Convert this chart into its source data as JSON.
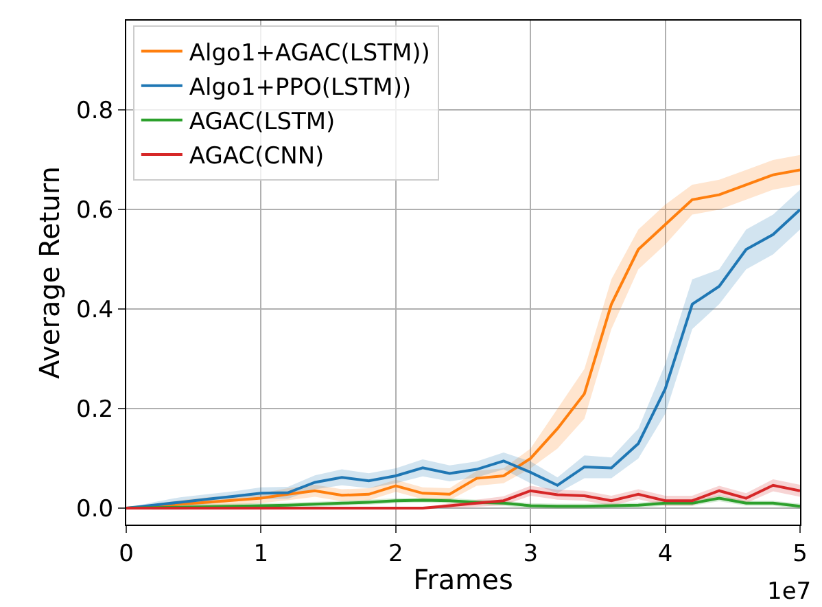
{
  "chart_data": {
    "type": "line",
    "xlabel": "Frames",
    "ylabel": "Average Return",
    "annotations": [
      "1e7"
    ],
    "x": [
      0,
      0.2,
      0.4,
      0.6,
      0.8,
      1,
      1.2,
      1.4,
      1.6,
      1.8,
      2,
      2.2,
      2.4,
      2.6,
      2.8,
      3,
      3.2,
      3.4,
      3.6,
      3.8,
      4,
      4.2,
      4.4,
      4.6,
      4.8,
      5
    ],
    "series": [
      {
        "name": "Algo1+AGAC(LSTM))",
        "color": "#ff7f0e",
        "values": [
          0,
          0.004,
          0.008,
          0.012,
          0.016,
          0.02,
          0.028,
          0.035,
          0.026,
          0.028,
          0.045,
          0.03,
          0.028,
          0.06,
          0.065,
          0.1,
          0.16,
          0.23,
          0.41,
          0.52,
          0.57,
          0.62,
          0.63,
          0.65,
          0.67,
          0.68
        ],
        "lower": [
          0,
          0,
          0,
          0.002,
          0.006,
          0.01,
          0.016,
          0.023,
          0.014,
          0.016,
          0.033,
          0.018,
          0.016,
          0.045,
          0.05,
          0.08,
          0.12,
          0.18,
          0.36,
          0.48,
          0.53,
          0.59,
          0.6,
          0.62,
          0.64,
          0.65
        ],
        "upper": [
          0,
          0.008,
          0.016,
          0.022,
          0.026,
          0.03,
          0.04,
          0.047,
          0.038,
          0.04,
          0.057,
          0.042,
          0.04,
          0.075,
          0.08,
          0.12,
          0.2,
          0.28,
          0.46,
          0.56,
          0.61,
          0.65,
          0.66,
          0.68,
          0.7,
          0.71
        ]
      },
      {
        "name": "Algo1+PPO(LSTM))",
        "color": "#1f77b4",
        "values": [
          0,
          0.006,
          0.012,
          0.018,
          0.024,
          0.03,
          0.031,
          0.052,
          0.062,
          0.055,
          0.065,
          0.081,
          0.07,
          0.078,
          0.095,
          0.072,
          0.046,
          0.083,
          0.081,
          0.13,
          0.24,
          0.41,
          0.446,
          0.52,
          0.55,
          0.6
        ],
        "lower": [
          0,
          0,
          0.002,
          0.008,
          0.014,
          0.018,
          0.019,
          0.038,
          0.046,
          0.04,
          0.05,
          0.064,
          0.054,
          0.062,
          0.078,
          0.05,
          0.03,
          0.06,
          0.06,
          0.1,
          0.19,
          0.36,
          0.41,
          0.48,
          0.51,
          0.56
        ],
        "upper": [
          0,
          0.012,
          0.022,
          0.028,
          0.034,
          0.042,
          0.043,
          0.066,
          0.078,
          0.07,
          0.08,
          0.098,
          0.086,
          0.094,
          0.112,
          0.094,
          0.062,
          0.106,
          0.102,
          0.16,
          0.29,
          0.46,
          0.48,
          0.56,
          0.59,
          0.64
        ]
      },
      {
        "name": "AGAC(LSTM)",
        "color": "#2ca02c",
        "values": [
          0,
          0.001,
          0.002,
          0.003,
          0.004,
          0.005,
          0.006,
          0.008,
          0.01,
          0.012,
          0.015,
          0.016,
          0.015,
          0.012,
          0.01,
          0.005,
          0.004,
          0.004,
          0.005,
          0.006,
          0.01,
          0.01,
          0.02,
          0.01,
          0.01,
          0.004
        ],
        "lower": [
          0,
          -0.003,
          -0.003,
          -0.002,
          -0.001,
          0,
          0.001,
          0.003,
          0.005,
          0.007,
          0.01,
          0.011,
          0.01,
          0.007,
          0.005,
          0,
          -0.001,
          -0.001,
          0,
          0.001,
          0.005,
          0.005,
          0.014,
          0.005,
          0.005,
          -0.001
        ],
        "upper": [
          0,
          0.006,
          0.007,
          0.008,
          0.009,
          0.01,
          0.011,
          0.013,
          0.015,
          0.017,
          0.02,
          0.021,
          0.02,
          0.017,
          0.015,
          0.01,
          0.009,
          0.009,
          0.01,
          0.011,
          0.015,
          0.015,
          0.026,
          0.015,
          0.015,
          0.009
        ]
      },
      {
        "name": "AGAC(CNN)",
        "color": "#d62728",
        "values": [
          0,
          0,
          0,
          0,
          0,
          0,
          0,
          0,
          0,
          0,
          0,
          0,
          0.005,
          0.01,
          0.015,
          0.035,
          0.027,
          0.025,
          0.015,
          0.028,
          0.015,
          0.015,
          0.035,
          0.02,
          0.046,
          0.035
        ],
        "lower": [
          0,
          0,
          0,
          0,
          0,
          0,
          0,
          0,
          0,
          0,
          0,
          0,
          0,
          0.003,
          0.006,
          0.025,
          0.017,
          0.015,
          0.005,
          0.018,
          0.005,
          0.005,
          0.025,
          0.01,
          0.034,
          0.023
        ],
        "upper": [
          0,
          0,
          0,
          0,
          0,
          0,
          0,
          0,
          0,
          0,
          0,
          0,
          0.01,
          0.017,
          0.024,
          0.045,
          0.037,
          0.035,
          0.025,
          0.038,
          0.025,
          0.025,
          0.045,
          0.03,
          0.058,
          0.047
        ]
      }
    ],
    "xlim": [
      0,
      5
    ],
    "ylim": [
      -0.033,
      0.98
    ],
    "xticks": [
      0,
      1,
      2,
      3,
      4,
      5
    ],
    "yticks": [
      {
        "value": 0,
        "label": "0.0"
      },
      {
        "value": 0.2,
        "label": "0.2"
      },
      {
        "value": 0.4,
        "label": "0.4"
      },
      {
        "value": 0.6,
        "label": "0.6"
      },
      {
        "value": 0.8,
        "label": "0.8"
      }
    ],
    "grid": true,
    "legend": "top left",
    "marker": "none",
    "line_style": "solid"
  }
}
